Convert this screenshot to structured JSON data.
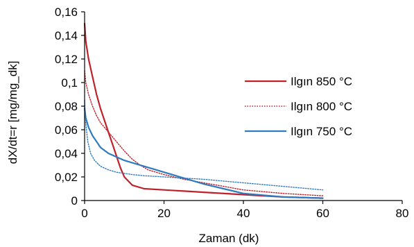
{
  "chart_data": {
    "type": "line",
    "title": "",
    "xlabel": "Zaman (dk)",
    "ylabel": "dX/dt=r  [mg/mg_dk]",
    "xlim": [
      0,
      80
    ],
    "ylim": [
      0,
      0.16
    ],
    "x_ticks": [
      0,
      20,
      40,
      60,
      80
    ],
    "x_tick_labels": [
      "0",
      "20",
      "40",
      "60",
      "80"
    ],
    "y_ticks": [
      0,
      0.02,
      0.04,
      0.06,
      0.08,
      0.1,
      0.12,
      0.14,
      0.16
    ],
    "y_tick_labels": [
      "0",
      "0,02",
      "0,04",
      "0,06",
      "0,08",
      "0,1",
      "0,12",
      "0,14",
      "0,16"
    ],
    "grid": false,
    "legend_position": "right",
    "series": [
      {
        "name": "Ilgın 850 °C",
        "color": "#c0202a",
        "style": "solid",
        "x": [
          0,
          0.3,
          1,
          2,
          3,
          4,
          5,
          6,
          7,
          8,
          9,
          10,
          12,
          15,
          20,
          25,
          30,
          40,
          50,
          60
        ],
        "y": [
          0.15,
          0.135,
          0.12,
          0.105,
          0.09,
          0.078,
          0.068,
          0.058,
          0.048,
          0.038,
          0.028,
          0.02,
          0.013,
          0.01,
          0.009,
          0.008,
          0.007,
          0.005,
          0.003,
          0.002
        ]
      },
      {
        "name": "Ilgın 800 °C",
        "color": "#c0202a",
        "style": "dotted",
        "x": [
          0,
          0.3,
          1,
          2,
          3,
          4,
          6,
          8,
          10,
          12,
          14,
          16,
          20,
          25,
          30,
          35,
          40,
          50,
          60
        ],
        "y": [
          0.11,
          0.1,
          0.09,
          0.08,
          0.072,
          0.066,
          0.058,
          0.05,
          0.042,
          0.035,
          0.03,
          0.026,
          0.022,
          0.018,
          0.015,
          0.012,
          0.009,
          0.006,
          0.004
        ]
      },
      {
        "name": "Ilgın 750 °C",
        "color": "#2e7bbf",
        "style": "solid",
        "x": [
          0,
          0.3,
          1,
          2,
          3,
          4,
          6,
          8,
          10,
          15,
          20,
          25,
          30,
          35,
          40,
          50,
          60
        ],
        "y": [
          0.078,
          0.07,
          0.062,
          0.055,
          0.05,
          0.045,
          0.04,
          0.037,
          0.034,
          0.029,
          0.024,
          0.019,
          0.014,
          0.01,
          0.006,
          0.003,
          0.002
        ]
      },
      {
        "name": "",
        "color": "#2e7bbf",
        "style": "dotted",
        "x": [
          0,
          0.3,
          0.8,
          1.5,
          2.5,
          4,
          6,
          8,
          10,
          12,
          15,
          20,
          30,
          40,
          50,
          60
        ],
        "y": [
          0.085,
          0.065,
          0.05,
          0.04,
          0.034,
          0.029,
          0.026,
          0.024,
          0.023,
          0.022,
          0.021,
          0.02,
          0.018,
          0.015,
          0.012,
          0.009
        ]
      }
    ]
  }
}
